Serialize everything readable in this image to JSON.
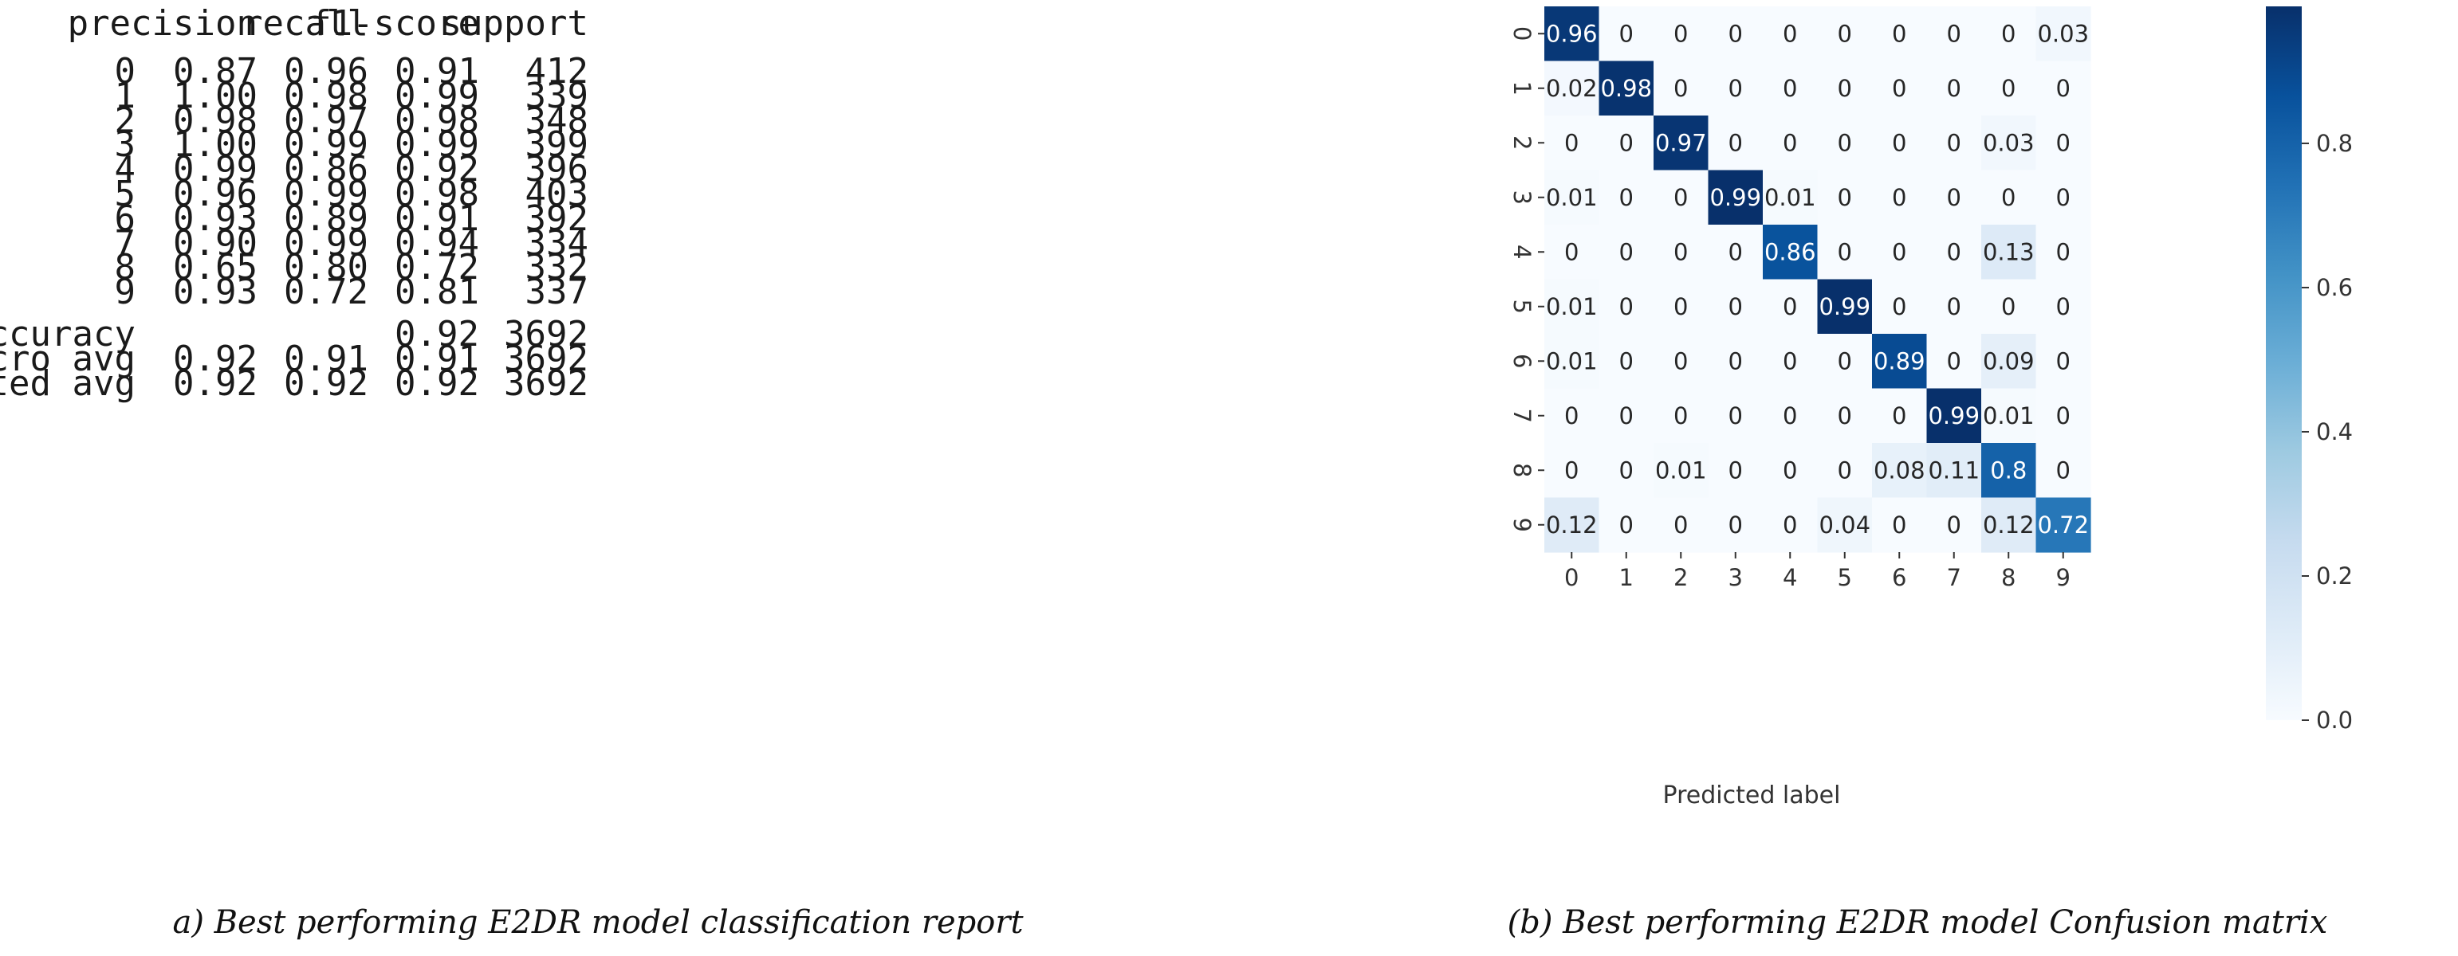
{
  "report": {
    "headers": [
      "precision",
      "recall",
      "f1-score",
      "support"
    ],
    "rows": [
      {
        "label": "0",
        "precision": "0.87",
        "recall": "0.96",
        "f1": "0.91",
        "support": "412"
      },
      {
        "label": "1",
        "precision": "1.00",
        "recall": "0.98",
        "f1": "0.99",
        "support": "339"
      },
      {
        "label": "2",
        "precision": "0.98",
        "recall": "0.97",
        "f1": "0.98",
        "support": "348"
      },
      {
        "label": "3",
        "precision": "1.00",
        "recall": "0.99",
        "f1": "0.99",
        "support": "399"
      },
      {
        "label": "4",
        "precision": "0.99",
        "recall": "0.86",
        "f1": "0.92",
        "support": "396"
      },
      {
        "label": "5",
        "precision": "0.96",
        "recall": "0.99",
        "f1": "0.98",
        "support": "403"
      },
      {
        "label": "6",
        "precision": "0.93",
        "recall": "0.89",
        "f1": "0.91",
        "support": "392"
      },
      {
        "label": "7",
        "precision": "0.90",
        "recall": "0.99",
        "f1": "0.94",
        "support": "334"
      },
      {
        "label": "8",
        "precision": "0.65",
        "recall": "0.80",
        "f1": "0.72",
        "support": "332"
      },
      {
        "label": "9",
        "precision": "0.93",
        "recall": "0.72",
        "f1": "0.81",
        "support": "337"
      }
    ],
    "summary": [
      {
        "label": "accuracy",
        "precision": "",
        "recall": "",
        "f1": "0.92",
        "support": "3692"
      },
      {
        "label": "macro avg",
        "precision": "0.92",
        "recall": "0.91",
        "f1": "0.91",
        "support": "3692"
      },
      {
        "label": "weighted avg",
        "precision": "0.92",
        "recall": "0.92",
        "f1": "0.92",
        "support": "3692"
      }
    ]
  },
  "captions": {
    "left": "a) Best performing E2DR model classification report",
    "right": "(b) Best performing E2DR model Confusion matrix"
  },
  "colors": {
    "cmap_low": "#f7fbff",
    "cmap_mid": "#6baed6",
    "cmap_high": "#08306b",
    "text_dark": "#262626",
    "text_light": "#ffffff"
  },
  "chart_data": {
    "type": "heatmap",
    "title": "",
    "xlabel": "Predicted label",
    "ylabel": "",
    "x_ticks": [
      "0",
      "1",
      "2",
      "3",
      "4",
      "5",
      "6",
      "7",
      "8",
      "9"
    ],
    "y_ticks": [
      "0",
      "1",
      "2",
      "3",
      "4",
      "5",
      "6",
      "7",
      "8",
      "9"
    ],
    "values": [
      [
        0.96,
        0,
        0,
        0,
        0,
        0,
        0,
        0,
        0,
        0.03
      ],
      [
        0.02,
        0.98,
        0,
        0,
        0,
        0,
        0,
        0,
        0,
        0
      ],
      [
        0,
        0,
        0.97,
        0,
        0,
        0,
        0,
        0,
        0.03,
        0
      ],
      [
        0.01,
        0,
        0,
        0.99,
        0.01,
        0,
        0,
        0,
        0,
        0
      ],
      [
        0,
        0,
        0,
        0,
        0.86,
        0,
        0,
        0,
        0.13,
        0
      ],
      [
        0.01,
        0,
        0,
        0,
        0,
        0.99,
        0,
        0,
        0,
        0
      ],
      [
        0.01,
        0,
        0,
        0,
        0,
        0,
        0.89,
        0,
        0.09,
        0
      ],
      [
        0,
        0,
        0,
        0,
        0,
        0,
        0,
        0.99,
        0.01,
        0
      ],
      [
        0,
        0,
        0.01,
        0,
        0,
        0,
        0.08,
        0.11,
        0.8,
        0
      ],
      [
        0.12,
        0,
        0,
        0,
        0,
        0.04,
        0,
        0,
        0.12,
        0.72
      ]
    ],
    "value_labels": [
      [
        "0.96",
        "0",
        "0",
        "0",
        "0",
        "0",
        "0",
        "0",
        "0",
        "0.03"
      ],
      [
        "0.02",
        "0.98",
        "0",
        "0",
        "0",
        "0",
        "0",
        "0",
        "0",
        "0"
      ],
      [
        "0",
        "0",
        "0.97",
        "0",
        "0",
        "0",
        "0",
        "0",
        "0.03",
        "0"
      ],
      [
        "0.01",
        "0",
        "0",
        "0.99",
        "0.01",
        "0",
        "0",
        "0",
        "0",
        "0"
      ],
      [
        "0",
        "0",
        "0",
        "0",
        "0.86",
        "0",
        "0",
        "0",
        "0.13",
        "0"
      ],
      [
        "0.01",
        "0",
        "0",
        "0",
        "0",
        "0.99",
        "0",
        "0",
        "0",
        "0"
      ],
      [
        "0.01",
        "0",
        "0",
        "0",
        "0",
        "0",
        "0.89",
        "0",
        "0.09",
        "0"
      ],
      [
        "0",
        "0",
        "0",
        "0",
        "0",
        "0",
        "0",
        "0.99",
        "0.01",
        "0"
      ],
      [
        "0",
        "0",
        "0.01",
        "0",
        "0",
        "0",
        "0.08",
        "0.11",
        "0.8",
        "0"
      ],
      [
        "0.12",
        "0",
        "0",
        "0",
        "0",
        "0.04",
        "0",
        "0",
        "0.12",
        "0.72"
      ]
    ],
    "colorbar": {
      "min": 0.0,
      "max": 0.99,
      "ticks": [
        0.0,
        0.2,
        0.4,
        0.6,
        0.8
      ],
      "tick_labels": [
        "0.0",
        "0.2",
        "0.4",
        "0.6",
        "0.8"
      ]
    }
  }
}
